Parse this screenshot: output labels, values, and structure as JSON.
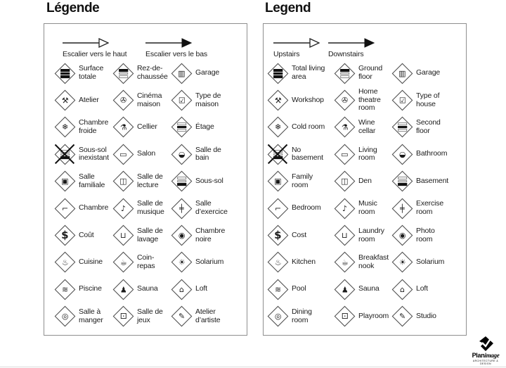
{
  "panels": [
    {
      "title": "Légende",
      "arrows": {
        "up_label": "Escalier vers le haut",
        "down_label": "Escalier vers le bas"
      },
      "items": [
        {
          "label": "Surface totale",
          "icon": "total-living-area-icon",
          "type": "bars",
          "pattern": "bbb"
        },
        {
          "label": "Rez-de-chaussée",
          "icon": "ground-floor-icon",
          "type": "bars",
          "pattern": "bww"
        },
        {
          "label": "Garage",
          "icon": "garage-icon",
          "type": "glyph",
          "glyph": "▥"
        },
        {
          "label": "Atelier",
          "icon": "workshop-icon",
          "type": "glyph",
          "glyph": "⚒"
        },
        {
          "label": "Cinéma maison",
          "icon": "home-theatre-icon",
          "type": "glyph",
          "glyph": "✇"
        },
        {
          "label": "Type de maison",
          "icon": "house-type-icon",
          "type": "glyph",
          "glyph": "☑"
        },
        {
          "label": "Chambre froide",
          "icon": "cold-room-icon",
          "type": "glyph",
          "glyph": "❄"
        },
        {
          "label": "Cellier",
          "icon": "wine-cellar-icon",
          "type": "glyph",
          "glyph": "⚗"
        },
        {
          "label": "Étage",
          "icon": "second-floor-icon",
          "type": "bars",
          "pattern": "wbw"
        },
        {
          "label": "Sous-sol inexistant",
          "icon": "no-basement-icon",
          "type": "bars",
          "pattern": "wwb",
          "crossed": true
        },
        {
          "label": "Salon",
          "icon": "living-room-icon",
          "type": "glyph",
          "glyph": "▭"
        },
        {
          "label": "Salle de bain",
          "icon": "bathroom-icon",
          "type": "glyph",
          "glyph": "◒"
        },
        {
          "label": "Salle familiale",
          "icon": "family-room-icon",
          "type": "glyph",
          "glyph": "▣"
        },
        {
          "label": "Salle de lecture",
          "icon": "den-icon",
          "type": "glyph",
          "glyph": "◫"
        },
        {
          "label": "Sous-sol",
          "icon": "basement-icon",
          "type": "bars",
          "pattern": "wwb"
        },
        {
          "label": "Chambre",
          "icon": "bedroom-icon",
          "type": "glyph",
          "glyph": "⌐"
        },
        {
          "label": "Salle de musique",
          "icon": "music-room-icon",
          "type": "glyph",
          "glyph": "♪"
        },
        {
          "label": "Salle d’exercice",
          "icon": "exercise-room-icon",
          "type": "glyph",
          "glyph": "╪"
        },
        {
          "label": "Coût",
          "icon": "cost-icon",
          "type": "glyph",
          "glyph": "$",
          "big": true
        },
        {
          "label": "Salle de lavage",
          "icon": "laundry-room-icon",
          "type": "glyph",
          "glyph": "⊔"
        },
        {
          "label": "Chambre noire",
          "icon": "photo-room-icon",
          "type": "glyph",
          "glyph": "◉"
        },
        {
          "label": "Cuisine",
          "icon": "kitchen-icon",
          "type": "glyph",
          "glyph": "♨"
        },
        {
          "label": "Coin-repas",
          "icon": "breakfast-nook-icon",
          "type": "glyph",
          "glyph": "☕"
        },
        {
          "label": "Solarium",
          "icon": "solarium-icon",
          "type": "glyph",
          "glyph": "☀"
        },
        {
          "label": "Piscine",
          "icon": "pool-icon",
          "type": "glyph",
          "glyph": "≋"
        },
        {
          "label": "Sauna",
          "icon": "sauna-icon",
          "type": "glyph",
          "glyph": "♟"
        },
        {
          "label": "Loft",
          "icon": "loft-icon",
          "type": "glyph",
          "glyph": "⌂"
        },
        {
          "label": "Salle à manger",
          "icon": "dining-room-icon",
          "type": "glyph",
          "glyph": "◎"
        },
        {
          "label": "Salle de jeux",
          "icon": "playroom-icon",
          "type": "glyph",
          "glyph": "⚀"
        },
        {
          "label": "Atelier d’artiste",
          "icon": "studio-icon",
          "type": "glyph",
          "glyph": "✎"
        }
      ]
    },
    {
      "title": "Legend",
      "arrows": {
        "up_label": "Upstairs",
        "down_label": "Downstairs"
      },
      "items": [
        {
          "label": "Total living area",
          "icon": "total-living-area-icon",
          "type": "bars",
          "pattern": "bbb"
        },
        {
          "label": "Ground floor",
          "icon": "ground-floor-icon",
          "type": "bars",
          "pattern": "bww"
        },
        {
          "label": "Garage",
          "icon": "garage-icon",
          "type": "glyph",
          "glyph": "▥"
        },
        {
          "label": "Workshop",
          "icon": "workshop-icon",
          "type": "glyph",
          "glyph": "⚒"
        },
        {
          "label": "Home theatre room",
          "icon": "home-theatre-icon",
          "type": "glyph",
          "glyph": "✇"
        },
        {
          "label": "Type of house",
          "icon": "house-type-icon",
          "type": "glyph",
          "glyph": "☑"
        },
        {
          "label": "Cold room",
          "icon": "cold-room-icon",
          "type": "glyph",
          "glyph": "❄"
        },
        {
          "label": "Wine cellar",
          "icon": "wine-cellar-icon",
          "type": "glyph",
          "glyph": "⚗"
        },
        {
          "label": "Second floor",
          "icon": "second-floor-icon",
          "type": "bars",
          "pattern": "wbw"
        },
        {
          "label": "No basement",
          "icon": "no-basement-icon",
          "type": "bars",
          "pattern": "wwb",
          "crossed": true
        },
        {
          "label": "Living room",
          "icon": "living-room-icon",
          "type": "glyph",
          "glyph": "▭"
        },
        {
          "label": "Bathroom",
          "icon": "bathroom-icon",
          "type": "glyph",
          "glyph": "◒"
        },
        {
          "label": "Family room",
          "icon": "family-room-icon",
          "type": "glyph",
          "glyph": "▣"
        },
        {
          "label": "Den",
          "icon": "den-icon",
          "type": "glyph",
          "glyph": "◫"
        },
        {
          "label": "Basement",
          "icon": "basement-icon",
          "type": "bars",
          "pattern": "wwb"
        },
        {
          "label": "Bedroom",
          "icon": "bedroom-icon",
          "type": "glyph",
          "glyph": "⌐"
        },
        {
          "label": "Music room",
          "icon": "music-room-icon",
          "type": "glyph",
          "glyph": "♪"
        },
        {
          "label": "Exercise room",
          "icon": "exercise-room-icon",
          "type": "glyph",
          "glyph": "╪"
        },
        {
          "label": "Cost",
          "icon": "cost-icon",
          "type": "glyph",
          "glyph": "$",
          "big": true
        },
        {
          "label": "Laundry room",
          "icon": "laundry-room-icon",
          "type": "glyph",
          "glyph": "⊔"
        },
        {
          "label": "Photo room",
          "icon": "photo-room-icon",
          "type": "glyph",
          "glyph": "◉"
        },
        {
          "label": "Kitchen",
          "icon": "kitchen-icon",
          "type": "glyph",
          "glyph": "♨"
        },
        {
          "label": "Breakfast nook",
          "icon": "breakfast-nook-icon",
          "type": "glyph",
          "glyph": "☕"
        },
        {
          "label": "Solarium",
          "icon": "solarium-icon",
          "type": "glyph",
          "glyph": "☀"
        },
        {
          "label": "Pool",
          "icon": "pool-icon",
          "type": "glyph",
          "glyph": "≋"
        },
        {
          "label": "Sauna",
          "icon": "sauna-icon",
          "type": "glyph",
          "glyph": "♟"
        },
        {
          "label": "Loft",
          "icon": "loft-icon",
          "type": "glyph",
          "glyph": "⌂"
        },
        {
          "label": "Dining room",
          "icon": "dining-room-icon",
          "type": "glyph",
          "glyph": "◎"
        },
        {
          "label": "Playroom",
          "icon": "playroom-icon",
          "type": "glyph",
          "glyph": "⚀"
        },
        {
          "label": "Studio",
          "icon": "studio-icon",
          "type": "glyph",
          "glyph": "✎"
        }
      ]
    }
  ],
  "logo": {
    "plan": "Plan",
    "image": "image",
    "tagline": "ARCHITECTURE & DESIGN"
  }
}
